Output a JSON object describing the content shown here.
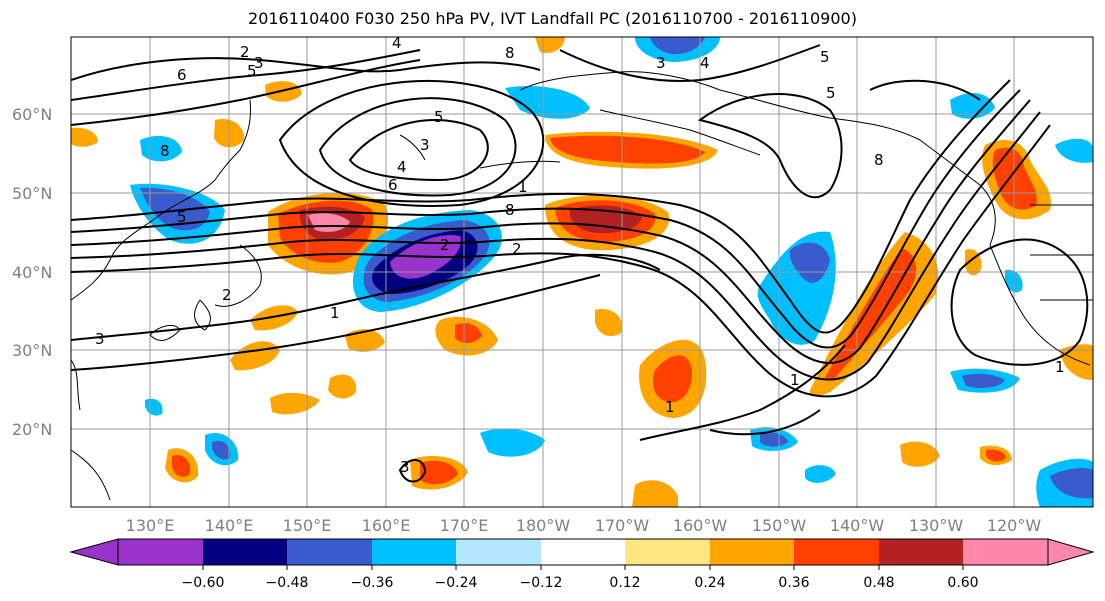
{
  "title": "2016110400 F030 250 hPa PV, IVT Landfall PC (2016110700 - 2016110900)",
  "lat_labels": [
    "60°N",
    "50°N",
    "40°N",
    "30°N",
    "20°N"
  ],
  "lon_labels": [
    "130°E",
    "140°E",
    "150°E",
    "160°E",
    "170°E",
    "180°W",
    "170°W",
    "160°W",
    "150°W",
    "140°W",
    "130°W",
    "120°W"
  ],
  "colorbar": {
    "ticks": [
      "−0.60",
      "−0.48",
      "−0.36",
      "−0.24",
      "−0.12",
      "0.12",
      "0.24",
      "0.36",
      "0.48",
      "0.60"
    ],
    "colors": [
      "#9933cc",
      "#000080",
      "#3a5bcc",
      "#00bfff",
      "#b3e6ff",
      "#ffffff",
      "#ffe680",
      "#ffa500",
      "#ff4000",
      "#b22222",
      "#ff88aa"
    ]
  },
  "contour_labels": [
    "2",
    "3",
    "6",
    "5",
    "8",
    "4",
    "3",
    "3",
    "5",
    "4",
    "8",
    "5",
    "5",
    "1",
    "2",
    "8",
    "6",
    "4",
    "2",
    "3",
    "2",
    "1",
    "1",
    "3",
    "1",
    "8",
    "5",
    "1"
  ]
}
